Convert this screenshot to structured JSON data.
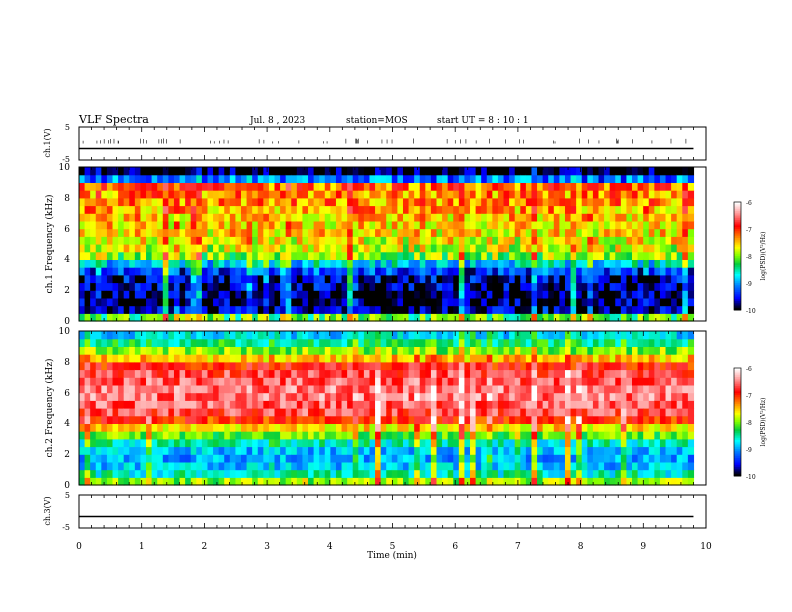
{
  "header": {
    "title": "VLF Spectra",
    "date": "Jul. 8 , 2023",
    "station": "station=MOS",
    "start": "start UT =  8 : 10 : 1"
  },
  "colorbar": {
    "label": "log(PSD)(V²/Hz)",
    "ticks": [
      "-6",
      "-7",
      "-8",
      "-9",
      "-10"
    ],
    "colors": [
      "#ffffff",
      "#ff9a9a",
      "#ff0000",
      "#ff8000",
      "#ffff00",
      "#80ff00",
      "#00cc40",
      "#00ffff",
      "#0080ff",
      "#0000ff",
      "#000000"
    ]
  },
  "chart_data": [
    {
      "type": "line",
      "panel": "ch1-waveform",
      "ylabel": "ch.1(V)",
      "yticks": [
        "5",
        "-5"
      ],
      "ylim": [
        -5,
        5
      ],
      "x": [
        0,
        9.8
      ],
      "values": [
        -1.5,
        -1.5
      ]
    },
    {
      "type": "heatmap",
      "panel": "ch1-spectrogram",
      "ylabel": "ch.1 Frequency (kHz)",
      "yticks": [
        "0",
        "2",
        "4",
        "6",
        "8",
        "10"
      ],
      "ylim": [
        0,
        10
      ],
      "xlim": [
        0,
        9.8
      ],
      "value_scale": "log(PSD)(V²/Hz)",
      "zlim": [
        -10,
        -6
      ],
      "freq_kHz": [
        0.25,
        0.75,
        1.25,
        1.75,
        2.25,
        2.75,
        3.25,
        3.75,
        4.25,
        4.75,
        5.25,
        5.75,
        6.25,
        6.75,
        7.25,
        7.75,
        8.25,
        8.75,
        9.25,
        9.75
      ],
      "psd_profile": [
        -8.2,
        -9.8,
        -9.9,
        -9.9,
        -9.8,
        -9.7,
        -9.4,
        -8.8,
        -8.0,
        -7.8,
        -7.7,
        -7.6,
        -7.6,
        -7.5,
        -7.4,
        -7.3,
        -7.3,
        -7.2,
        -9.2,
        -10
      ]
    },
    {
      "type": "heatmap",
      "panel": "ch2-spectrogram",
      "ylabel": "ch.2 Frequency (kHz)",
      "yticks": [
        "0",
        "2",
        "4",
        "6",
        "8",
        "10"
      ],
      "ylim": [
        0,
        10
      ],
      "xlim": [
        0,
        9.8
      ],
      "value_scale": "log(PSD)(V²/Hz)",
      "zlim": [
        -10,
        -6
      ],
      "freq_kHz": [
        0.25,
        0.75,
        1.25,
        1.75,
        2.25,
        2.75,
        3.25,
        3.75,
        4.25,
        4.75,
        5.25,
        5.75,
        6.25,
        6.75,
        7.25,
        7.75,
        8.25,
        8.75,
        9.25,
        9.75
      ],
      "psd_profile": [
        -8.0,
        -8.6,
        -8.9,
        -9.0,
        -8.9,
        -8.6,
        -8.1,
        -7.6,
        -7.0,
        -6.7,
        -6.6,
        -6.5,
        -6.5,
        -6.6,
        -6.7,
        -6.9,
        -7.5,
        -8.0,
        -8.4,
        -8.8
      ]
    },
    {
      "type": "line",
      "panel": "ch3-waveform",
      "ylabel": "ch.3(V)",
      "yticks": [
        "5",
        "-5"
      ],
      "ylim": [
        -5,
        5
      ],
      "x": [
        0,
        9.8
      ],
      "values": [
        -1.5,
        -1.5
      ],
      "xlabel": "Time (min)",
      "xticks": [
        "0",
        "1",
        "2",
        "3",
        "4",
        "5",
        "6",
        "7",
        "8",
        "9",
        "10"
      ],
      "xlim": [
        0,
        10
      ]
    }
  ]
}
